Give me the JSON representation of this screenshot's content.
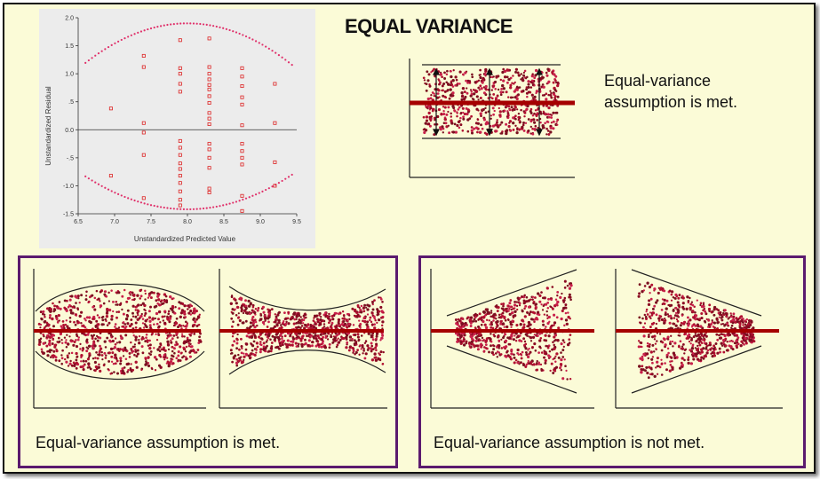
{
  "title": "EQUAL VARIANCE",
  "top_note": "Equal-variance assumption is met.",
  "left_caption": "Equal-variance assumption is met.",
  "right_caption": "Equal-variance assumption is not met.",
  "colors": {
    "slide_bg": "#fbfbd7",
    "panel_border": "#5b1a6e",
    "regression_line": "#a50000",
    "dots": "#b01030",
    "scatter_bg": "#ececec",
    "scatter_marker": "#e0306a"
  },
  "chart_data": {
    "type": "scatter",
    "title": "",
    "xlabel": "Unstandardized Predicted Value",
    "ylabel": "Unstandardized Residual",
    "xlim": [
      6.5,
      9.5
    ],
    "ylim": [
      -1.5,
      2.0
    ],
    "x_ticks": [
      "6.5",
      "7.0",
      "7.5",
      "8.0",
      "8.5",
      "9.0",
      "9.5"
    ],
    "y_ticks": [
      "2.0",
      "1.5",
      "1.0",
      ".5",
      "0.0",
      "-.5",
      "-1.0",
      "-1.5"
    ],
    "series": [
      {
        "marker": "square",
        "points": [
          [
            6.95,
            0.38
          ],
          [
            6.95,
            -0.82
          ],
          [
            7.4,
            1.32
          ],
          [
            7.4,
            1.12
          ],
          [
            7.4,
            0.12
          ],
          [
            7.4,
            -0.05
          ],
          [
            7.4,
            -0.45
          ],
          [
            7.4,
            -1.22
          ],
          [
            7.9,
            1.6
          ],
          [
            7.9,
            1.1
          ],
          [
            7.9,
            1.0
          ],
          [
            7.9,
            0.82
          ],
          [
            7.9,
            0.68
          ],
          [
            7.9,
            -0.2
          ],
          [
            7.9,
            -0.32
          ],
          [
            7.9,
            -0.45
          ],
          [
            7.9,
            -0.6
          ],
          [
            7.9,
            -0.7
          ],
          [
            7.9,
            -0.82
          ],
          [
            7.9,
            -0.95
          ],
          [
            7.9,
            -1.1
          ],
          [
            7.9,
            -1.25
          ],
          [
            7.9,
            -1.35
          ],
          [
            8.3,
            1.63
          ],
          [
            8.3,
            1.12
          ],
          [
            8.3,
            1.0
          ],
          [
            8.3,
            0.9
          ],
          [
            8.3,
            0.8
          ],
          [
            8.3,
            0.72
          ],
          [
            8.3,
            0.6
          ],
          [
            8.3,
            0.48
          ],
          [
            8.3,
            0.3
          ],
          [
            8.3,
            0.2
          ],
          [
            8.3,
            0.1
          ],
          [
            8.3,
            -0.25
          ],
          [
            8.3,
            -0.35
          ],
          [
            8.3,
            -0.5
          ],
          [
            8.3,
            -0.68
          ],
          [
            8.3,
            -1.05
          ],
          [
            8.3,
            -1.12
          ],
          [
            8.75,
            1.1
          ],
          [
            8.75,
            0.95
          ],
          [
            8.75,
            0.78
          ],
          [
            8.75,
            0.58
          ],
          [
            8.75,
            0.45
          ],
          [
            8.75,
            0.08
          ],
          [
            8.75,
            -0.25
          ],
          [
            8.75,
            -0.38
          ],
          [
            8.75,
            -0.5
          ],
          [
            8.75,
            -0.62
          ],
          [
            8.75,
            -1.18
          ],
          [
            8.75,
            -1.45
          ],
          [
            9.2,
            0.82
          ],
          [
            9.2,
            0.12
          ],
          [
            9.2,
            -0.58
          ],
          [
            9.2,
            -1.0
          ]
        ]
      },
      {
        "name": "",
        "marker": "dot-curve",
        "curves": [
          "upper-band",
          "lower-band"
        ]
      }
    ],
    "grid": false
  }
}
